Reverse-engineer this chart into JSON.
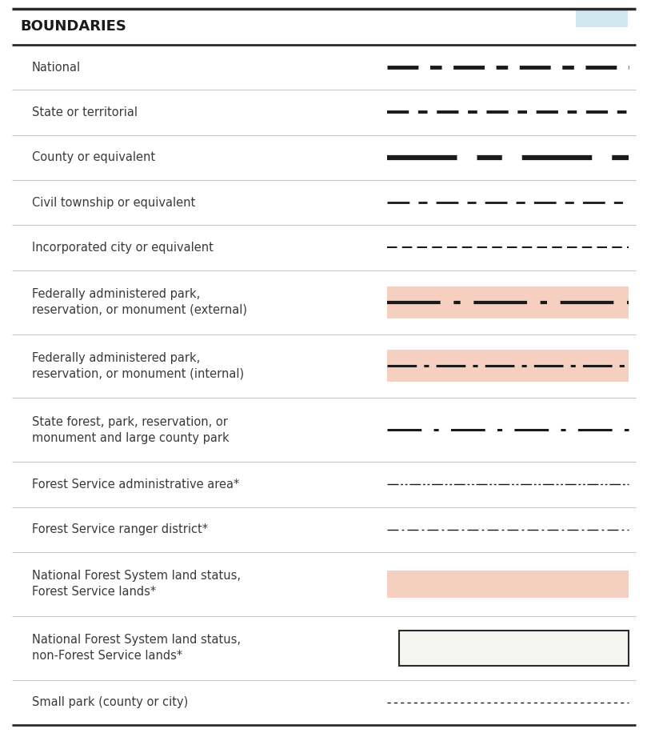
{
  "title": "BOUNDARIES",
  "title_fontsize": 13,
  "label_fontsize": 10.5,
  "text_color": "#3a3a3a",
  "title_color": "#1a1a1a",
  "background_color": "#ffffff",
  "separator_color": "#c8c8c8",
  "border_color": "#2a2a2a",
  "pink_fill": "#f5cfc0",
  "rows": [
    {
      "label": "National",
      "symbol_type": "dashed_line",
      "line_color": "#1a1a1a",
      "line_width": 3.5,
      "dash_pattern": [
        8,
        3,
        3,
        3
      ],
      "fill": null,
      "multiline": false
    },
    {
      "label": "State or territorial",
      "symbol_type": "dashed_line",
      "line_color": "#1a1a1a",
      "line_width": 2.8,
      "dash_pattern": [
        7,
        3,
        3,
        3
      ],
      "fill": null,
      "multiline": false
    },
    {
      "label": "County or equivalent",
      "symbol_type": "dashed_line",
      "line_color": "#1a1a1a",
      "line_width": 4.5,
      "dash_pattern": [
        14,
        4,
        5,
        4
      ],
      "fill": null,
      "multiline": false
    },
    {
      "label": "Civil township or equivalent",
      "symbol_type": "dashed_line",
      "line_color": "#1a1a1a",
      "line_width": 2.0,
      "dash_pattern": [
        10,
        4,
        4,
        4
      ],
      "fill": null,
      "multiline": false
    },
    {
      "label": "Incorporated city or equivalent",
      "symbol_type": "dashed_line",
      "line_color": "#1a1a1a",
      "line_width": 1.5,
      "dash_pattern": [
        6,
        3,
        6,
        3
      ],
      "fill": null,
      "multiline": false
    },
    {
      "label": "Federally administered park,\nreservation, or monument (external)",
      "symbol_type": "dashed_line_fill",
      "line_color": "#1a1a1a",
      "line_width": 3.0,
      "dash_pattern": [
        16,
        4,
        2,
        4
      ],
      "fill": "#f5cfc0",
      "multiline": true
    },
    {
      "label": "Federally administered park,\nreservation, or monument (internal)",
      "symbol_type": "dashed_line_fill",
      "line_color": "#1a1a1a",
      "line_width": 2.2,
      "dash_pattern": [
        12,
        3,
        2,
        3
      ],
      "fill": "#f5cfc0",
      "multiline": true
    },
    {
      "label": "State forest, park, reservation, or\nmonument and large county park",
      "symbol_type": "dashed_line",
      "line_color": "#1a1a1a",
      "line_width": 2.2,
      "dash_pattern": [
        14,
        5,
        2,
        5
      ],
      "fill": null,
      "multiline": true
    },
    {
      "label": "Forest Service administrative area*",
      "symbol_type": "dashed_line",
      "line_color": "#1a1a1a",
      "line_width": 1.0,
      "dash_pattern": [
        10,
        2,
        2,
        2,
        2,
        2
      ],
      "fill": null,
      "multiline": false
    },
    {
      "label": "Forest Service ranger district*",
      "symbol_type": "dashed_line",
      "line_color": "#1a1a1a",
      "line_width": 1.0,
      "dash_pattern": [
        10,
        3,
        2,
        3
      ],
      "fill": null,
      "multiline": false
    },
    {
      "label": "National Forest System land status,\nForest Service lands*",
      "symbol_type": "fill_only",
      "line_color": null,
      "line_width": 0,
      "dash_pattern": [],
      "fill": "#f5cfc0",
      "multiline": true
    },
    {
      "label": "National Forest System land status,\nnon-Forest Service lands*",
      "symbol_type": "box_only",
      "line_color": "#2a2a2a",
      "line_width": 1.5,
      "dash_pattern": [],
      "fill": "#f5f5f2",
      "multiline": true
    },
    {
      "label": "Small park (county or city)",
      "symbol_type": "dashed_line",
      "line_color": "#1a1a1a",
      "line_width": 1.0,
      "dash_pattern": [
        3,
        3
      ],
      "fill": null,
      "multiline": false
    }
  ]
}
